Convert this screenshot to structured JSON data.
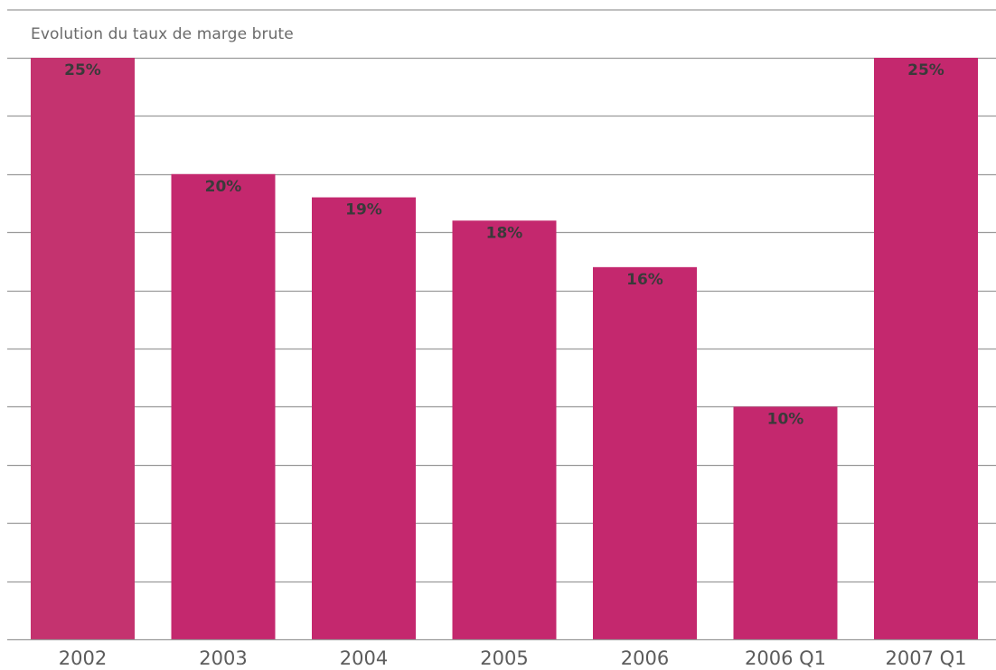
{
  "chart_data": {
    "type": "bar",
    "title": "Evolution du taux de marge brute",
    "categories": [
      "2002",
      "2003",
      "2004",
      "2005",
      "2006",
      "2006 Q1",
      "2007 Q1"
    ],
    "values": [
      25,
      20,
      19,
      18,
      16,
      10,
      25
    ],
    "data_labels": [
      "25%",
      "20%",
      "19%",
      "18%",
      "16%",
      "10%",
      "25%"
    ],
    "ylim": [
      0,
      25
    ],
    "ytick_step": 2.5,
    "grid": true,
    "colors": {
      "bar": "#c4286e",
      "bar_first": "#c4336f",
      "grid": "#9a9a9a",
      "label": "#3a3a3a",
      "category": "#5c5c5c"
    }
  }
}
